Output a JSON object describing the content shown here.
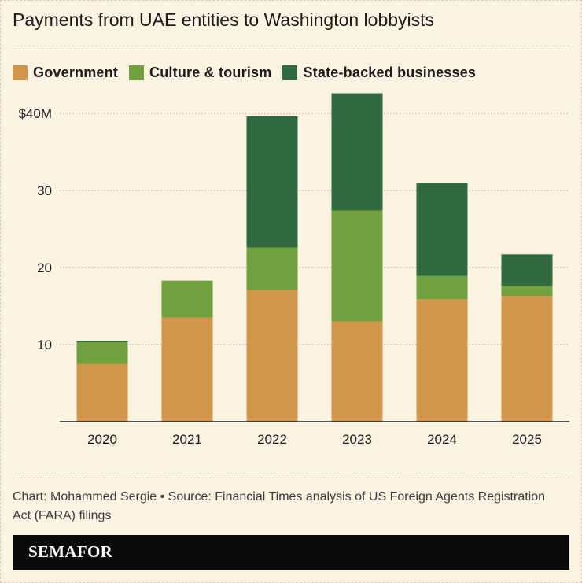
{
  "title": "Payments from UAE entities to Washington lobbyists",
  "colors": {
    "government": "#d1964a",
    "culture": "#71a040",
    "business": "#2f6b3e",
    "background": "#fbf2e2",
    "grid": "#c9a39b"
  },
  "footer": {
    "credit": "Chart: Mohammed Sergie • Source: Financial Times analysis of US Foreign Agents Registration Act (FARA) filings",
    "brand": "SEMAFOR"
  },
  "chart_data": {
    "type": "bar",
    "stacked": true,
    "categories": [
      "2020",
      "2021",
      "2022",
      "2023",
      "2024",
      "2025"
    ],
    "series": [
      {
        "name": "Government",
        "color": "#d1964a",
        "values": [
          7.5,
          13.5,
          17.1,
          13.0,
          15.9,
          16.3
        ]
      },
      {
        "name": "Culture & tourism",
        "color": "#71a040",
        "values": [
          2.8,
          4.8,
          5.5,
          14.4,
          3.0,
          1.3
        ]
      },
      {
        "name": "State-backed businesses",
        "color": "#2f6b3e",
        "values": [
          0.2,
          0,
          17.0,
          15.2,
          12.1,
          4.1
        ]
      }
    ],
    "yticks": [
      {
        "value": 10,
        "label": "10"
      },
      {
        "value": 20,
        "label": "20"
      },
      {
        "value": 30,
        "label": "30"
      },
      {
        "value": 40,
        "label": "$40M"
      }
    ],
    "ylim": [
      0,
      45
    ],
    "grid": true,
    "legend_position": "top-left",
    "xlabel": "",
    "ylabel": ""
  }
}
